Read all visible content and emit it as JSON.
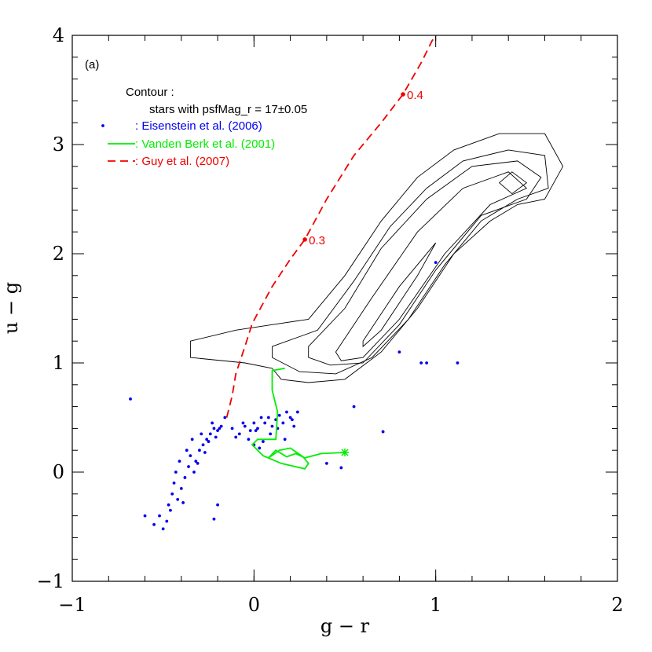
{
  "chart_data": {
    "type": "scatter-line",
    "panel_label": "(a)",
    "xlabel": "g − r",
    "ylabel": "u − g",
    "xlim": [
      -1,
      2
    ],
    "ylim": [
      -1,
      4
    ],
    "xticks": [
      {
        "value": -1,
        "label": "−1"
      },
      0,
      1,
      2
    ],
    "yticks": [
      {
        "value": -1,
        "label": "−1"
      },
      0,
      1,
      2,
      3,
      4
    ],
    "minor_step": 0.2,
    "contour_title": "Contour :",
    "contour_desc": "stars with psfMag_r = 17±0.05",
    "contour_color": "#000000",
    "contours": [
      {
        "x": [
          -0.35,
          -0.1,
          0.1,
          0.3,
          0.5,
          0.7,
          0.9,
          1.1,
          1.35,
          1.6,
          1.7,
          1.6,
          1.45,
          1.3,
          1.1,
          0.9,
          0.7,
          0.5,
          0.3,
          0.15,
          0.1,
          -0.05,
          -0.35
        ],
        "y": [
          1.2,
          1.3,
          1.35,
          1.4,
          1.8,
          2.3,
          2.7,
          2.95,
          3.1,
          3.1,
          2.8,
          2.5,
          2.45,
          2.3,
          2.0,
          1.5,
          1.1,
          0.85,
          0.82,
          0.85,
          0.95,
          1.0,
          1.05
        ]
      },
      {
        "x": [
          0.1,
          0.35,
          0.55,
          0.75,
          0.95,
          1.15,
          1.4,
          1.6,
          1.62,
          1.45,
          1.25,
          1.05,
          0.85,
          0.65,
          0.45,
          0.25,
          0.1
        ],
        "y": [
          1.15,
          1.3,
          1.75,
          2.25,
          2.6,
          2.85,
          2.95,
          2.9,
          2.6,
          2.5,
          2.3,
          1.9,
          1.4,
          1.05,
          0.9,
          0.92,
          1.05
        ]
      },
      {
        "x": [
          0.3,
          0.5,
          0.7,
          0.95,
          1.2,
          1.45,
          1.58,
          1.5,
          1.25,
          1.0,
          0.8,
          0.6,
          0.42,
          0.3
        ],
        "y": [
          1.15,
          1.5,
          2.05,
          2.5,
          2.8,
          2.85,
          2.7,
          2.5,
          2.35,
          1.85,
          1.35,
          1.0,
          0.98,
          1.05
        ]
      },
      {
        "x": [
          0.45,
          0.65,
          0.9,
          1.15,
          1.4,
          1.5,
          1.3,
          1.05,
          0.8,
          0.6,
          0.48
        ],
        "y": [
          1.1,
          1.6,
          2.2,
          2.6,
          2.75,
          2.6,
          2.45,
          2.0,
          1.4,
          1.05,
          1.02
        ]
      },
      {
        "x": [
          0.6,
          0.8,
          1.0,
          0.9,
          0.7,
          0.6
        ],
        "y": [
          1.2,
          1.7,
          2.1,
          1.8,
          1.3,
          1.15
        ]
      },
      {
        "x": [
          1.35,
          1.42,
          1.5,
          1.42
        ],
        "y": [
          2.65,
          2.75,
          2.65,
          2.55
        ]
      }
    ],
    "series": [
      {
        "name": ": Eisenstein et al. (2006)",
        "color": "#0000ee",
        "style": "points",
        "x": [
          -0.5,
          -0.48,
          -0.47,
          -0.45,
          -0.52,
          -0.55,
          -0.44,
          -0.42,
          -0.4,
          -0.43,
          -0.38,
          -0.36,
          -0.41,
          -0.35,
          -0.33,
          -0.37,
          -0.3,
          -0.32,
          -0.28,
          -0.34,
          -0.26,
          -0.24,
          -0.29,
          -0.22,
          -0.2,
          -0.25,
          -0.18,
          -0.23,
          -0.16,
          -0.21,
          -0.46,
          -0.39,
          -0.31,
          -0.27,
          -0.19,
          -0.12,
          -0.08,
          -0.05,
          -0.02,
          0.0,
          0.02,
          0.04,
          0.06,
          0.08,
          0.1,
          0.12,
          0.14,
          0.16,
          0.18,
          0.2,
          0.22,
          0.24,
          -0.1,
          -0.06,
          -0.03,
          0.01,
          0.05,
          0.09,
          0.13,
          0.17,
          0.21,
          0.0,
          0.03,
          -0.68,
          0.55,
          0.71,
          0.8,
          0.92,
          0.95,
          1.12,
          1.0,
          0.48,
          -0.2,
          -0.22,
          -0.6,
          0.4
        ],
        "y": [
          -0.52,
          -0.45,
          -0.3,
          -0.2,
          -0.4,
          -0.48,
          -0.1,
          -0.25,
          -0.15,
          0.0,
          -0.05,
          0.05,
          0.1,
          0.15,
          0.0,
          0.2,
          0.2,
          0.1,
          0.25,
          0.3,
          0.3,
          0.35,
          0.35,
          0.4,
          0.38,
          0.28,
          0.42,
          0.45,
          0.5,
          0.32,
          -0.35,
          -0.28,
          0.08,
          0.18,
          0.4,
          0.4,
          0.35,
          0.42,
          0.38,
          0.45,
          0.4,
          0.5,
          0.45,
          0.5,
          0.42,
          0.48,
          0.52,
          0.45,
          0.55,
          0.5,
          0.42,
          0.55,
          0.32,
          0.45,
          0.3,
          0.38,
          0.28,
          0.35,
          0.4,
          0.3,
          0.48,
          0.25,
          0.22,
          0.67,
          0.6,
          0.37,
          1.1,
          1.0,
          1.0,
          1.0,
          1.92,
          0.04,
          -0.3,
          -0.43,
          -0.4,
          0.08
        ]
      },
      {
        "name": ": Vanden Berk et al. (2001)",
        "color": "#00ee00",
        "style": "line",
        "x": [
          0.5,
          0.37,
          0.28,
          0.23,
          0.18,
          0.12,
          0.08,
          0.14,
          0.2,
          0.27,
          0.3,
          0.28,
          0.15,
          0.05,
          -0.01,
          0.02,
          0.12,
          0.13,
          0.1,
          0.1,
          0.17
        ],
        "y": [
          0.18,
          0.17,
          0.13,
          0.17,
          0.14,
          0.2,
          0.13,
          0.2,
          0.22,
          0.14,
          0.08,
          0.03,
          0.08,
          0.15,
          0.25,
          0.3,
          0.3,
          0.55,
          0.75,
          0.93,
          0.95
        ]
      },
      {
        "name": ": Guy et al. (2007)",
        "color": "#ee0000",
        "style": "dashed",
        "x": [
          -0.15,
          -0.12,
          -0.1,
          -0.05,
          -0.01,
          0.1,
          0.2,
          0.28,
          0.4,
          0.55,
          0.7,
          0.82,
          0.92,
          0.98,
          1.0
        ],
        "y": [
          0.5,
          0.7,
          0.9,
          1.15,
          1.36,
          1.7,
          1.95,
          2.13,
          2.5,
          2.9,
          3.2,
          3.46,
          3.75,
          3.95,
          4.0
        ]
      }
    ],
    "annotations": [
      {
        "text": "0.3",
        "x": 0.28,
        "y": 2.13
      },
      {
        "text": "0.4",
        "x": 0.82,
        "y": 3.46
      }
    ]
  }
}
